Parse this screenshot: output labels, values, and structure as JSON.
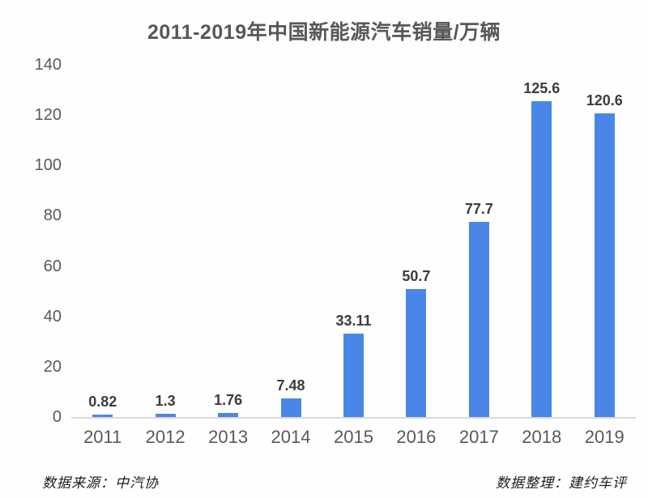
{
  "chart_data": {
    "type": "bar",
    "title": "2011-2019年中国新能源汽车销量/万辆",
    "categories": [
      "2011",
      "2012",
      "2013",
      "2014",
      "2015",
      "2016",
      "2017",
      "2018",
      "2019"
    ],
    "values": [
      0.82,
      1.3,
      1.76,
      7.48,
      33.11,
      50.7,
      77.7,
      125.6,
      120.6
    ],
    "value_labels": [
      "0.82",
      "1.3",
      "1.76",
      "7.48",
      "33.11",
      "50.7",
      "77.7",
      "125.6",
      "120.6"
    ],
    "xlabel": "",
    "ylabel": "",
    "ylim": [
      0,
      140
    ],
    "yticks": [
      0,
      20,
      40,
      60,
      80,
      100,
      120,
      140
    ],
    "grid": false,
    "legend_position": "none",
    "bar_color": "#4A86E8",
    "footer_left": "数据来源：中汽协",
    "footer_right": "数据整理：建约车评"
  }
}
